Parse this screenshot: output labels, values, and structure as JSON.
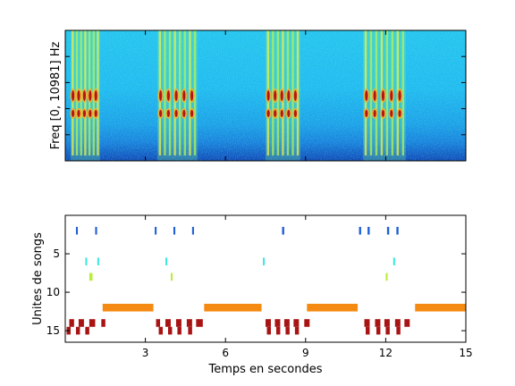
{
  "chart_data": [
    {
      "type": "heatmap",
      "title": "",
      "xlabel": "",
      "ylabel": "Freq [0, 10981] Hz",
      "xlim": [
        0,
        15
      ],
      "colormap": "jet",
      "bursts": [
        {
          "start": 0.2,
          "end": 1.3
        },
        {
          "start": 3.45,
          "end": 4.95
        },
        {
          "start": 7.5,
          "end": 8.8
        },
        {
          "start": 11.15,
          "end": 12.75
        }
      ]
    },
    {
      "type": "scatter",
      "title": "",
      "xlabel": "Temps en secondes",
      "ylabel": "Unites de songs",
      "xlim": [
        0,
        15
      ],
      "ylim": [
        16.5,
        0
      ],
      "xticks": [
        3,
        6,
        9,
        12,
        15
      ],
      "yticks": [
        5,
        10,
        15
      ],
      "series": [
        {
          "unit": 2,
          "color": "#1f5fd6",
          "marks": [
            [
              0.4,
              0.47
            ],
            [
              1.12,
              1.19
            ],
            [
              3.35,
              3.42
            ],
            [
              4.05,
              4.12
            ],
            [
              4.75,
              4.82
            ],
            [
              8.12,
              8.2
            ],
            [
              11.0,
              11.08
            ],
            [
              11.32,
              11.4
            ],
            [
              12.05,
              12.13
            ],
            [
              12.4,
              12.48
            ]
          ]
        },
        {
          "unit": 6,
          "color": "#3ee8e0",
          "marks": [
            [
              0.75,
              0.82
            ],
            [
              1.2,
              1.27
            ],
            [
              3.75,
              3.82
            ],
            [
              7.4,
              7.47
            ],
            [
              12.28,
              12.35
            ]
          ]
        },
        {
          "unit": 8,
          "color": "#b8ee3a",
          "marks": [
            [
              0.9,
              1.02
            ],
            [
              3.95,
              4.02
            ],
            [
              12.0,
              12.07
            ]
          ]
        },
        {
          "unit": 12,
          "color": "#f58a12",
          "marks": [
            [
              1.4,
              3.3
            ],
            [
              5.2,
              7.35
            ],
            [
              9.05,
              10.95
            ],
            [
              13.1,
              15.0
            ]
          ]
        },
        {
          "unit": 14,
          "color": "#a81414",
          "marks": [
            [
              0.15,
              0.33
            ],
            [
              0.5,
              0.7
            ],
            [
              0.9,
              1.12
            ],
            [
              1.35,
              1.5
            ],
            [
              3.4,
              3.55
            ],
            [
              3.75,
              3.95
            ],
            [
              4.15,
              4.35
            ],
            [
              4.55,
              4.75
            ],
            [
              4.9,
              5.15
            ],
            [
              7.5,
              7.7
            ],
            [
              7.85,
              8.05
            ],
            [
              8.2,
              8.4
            ],
            [
              8.55,
              8.75
            ],
            [
              8.95,
              9.15
            ],
            [
              11.2,
              11.4
            ],
            [
              11.6,
              11.8
            ],
            [
              11.95,
              12.15
            ],
            [
              12.35,
              12.55
            ],
            [
              12.7,
              12.9
            ]
          ]
        },
        {
          "unit": 15,
          "color": "#a81414",
          "marks": [
            [
              0.05,
              0.2
            ],
            [
              0.4,
              0.55
            ],
            [
              0.75,
              0.9
            ],
            [
              3.5,
              3.65
            ],
            [
              3.85,
              4.0
            ],
            [
              4.2,
              4.35
            ],
            [
              4.6,
              4.75
            ],
            [
              7.55,
              7.7
            ],
            [
              7.9,
              8.05
            ],
            [
              8.25,
              8.4
            ],
            [
              8.6,
              8.75
            ],
            [
              11.25,
              11.4
            ],
            [
              11.65,
              11.8
            ],
            [
              12.0,
              12.15
            ],
            [
              12.4,
              12.55
            ]
          ]
        }
      ]
    }
  ]
}
